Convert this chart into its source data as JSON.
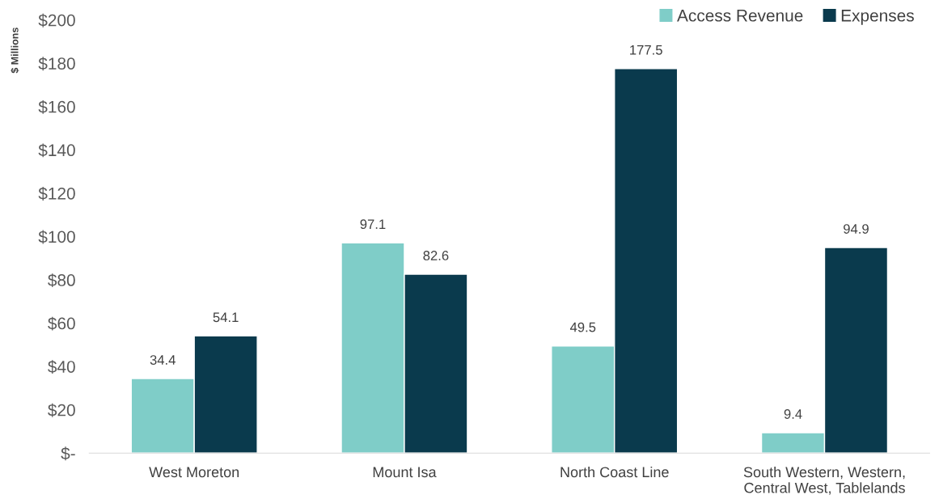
{
  "chart_data": {
    "type": "bar",
    "ylabel": "$ Millions",
    "categories": [
      "West Moreton",
      "Mount Isa",
      "North Coast Line",
      "South Western, Western,\nCentral West, Tablelands"
    ],
    "series": [
      {
        "name": "Access Revenue",
        "color": "#7fcdc8",
        "values": [
          34.4,
          97.1,
          49.5,
          9.4
        ]
      },
      {
        "name": "Expenses",
        "color": "#0a3a4d",
        "values": [
          54.1,
          82.6,
          177.5,
          94.9
        ]
      }
    ],
    "ylim": [
      0,
      200
    ],
    "yticks": [
      {
        "value": 0,
        "label": "$-"
      },
      {
        "value": 20,
        "label": "$20"
      },
      {
        "value": 40,
        "label": "$40"
      },
      {
        "value": 60,
        "label": "$60"
      },
      {
        "value": 80,
        "label": "$80"
      },
      {
        "value": 100,
        "label": "$100"
      },
      {
        "value": 120,
        "label": "$120"
      },
      {
        "value": 140,
        "label": "$140"
      },
      {
        "value": 160,
        "label": "$160"
      },
      {
        "value": 180,
        "label": "$180"
      },
      {
        "value": 200,
        "label": "$200"
      }
    ],
    "data_labels": true,
    "grid": false,
    "legend": "top right"
  }
}
